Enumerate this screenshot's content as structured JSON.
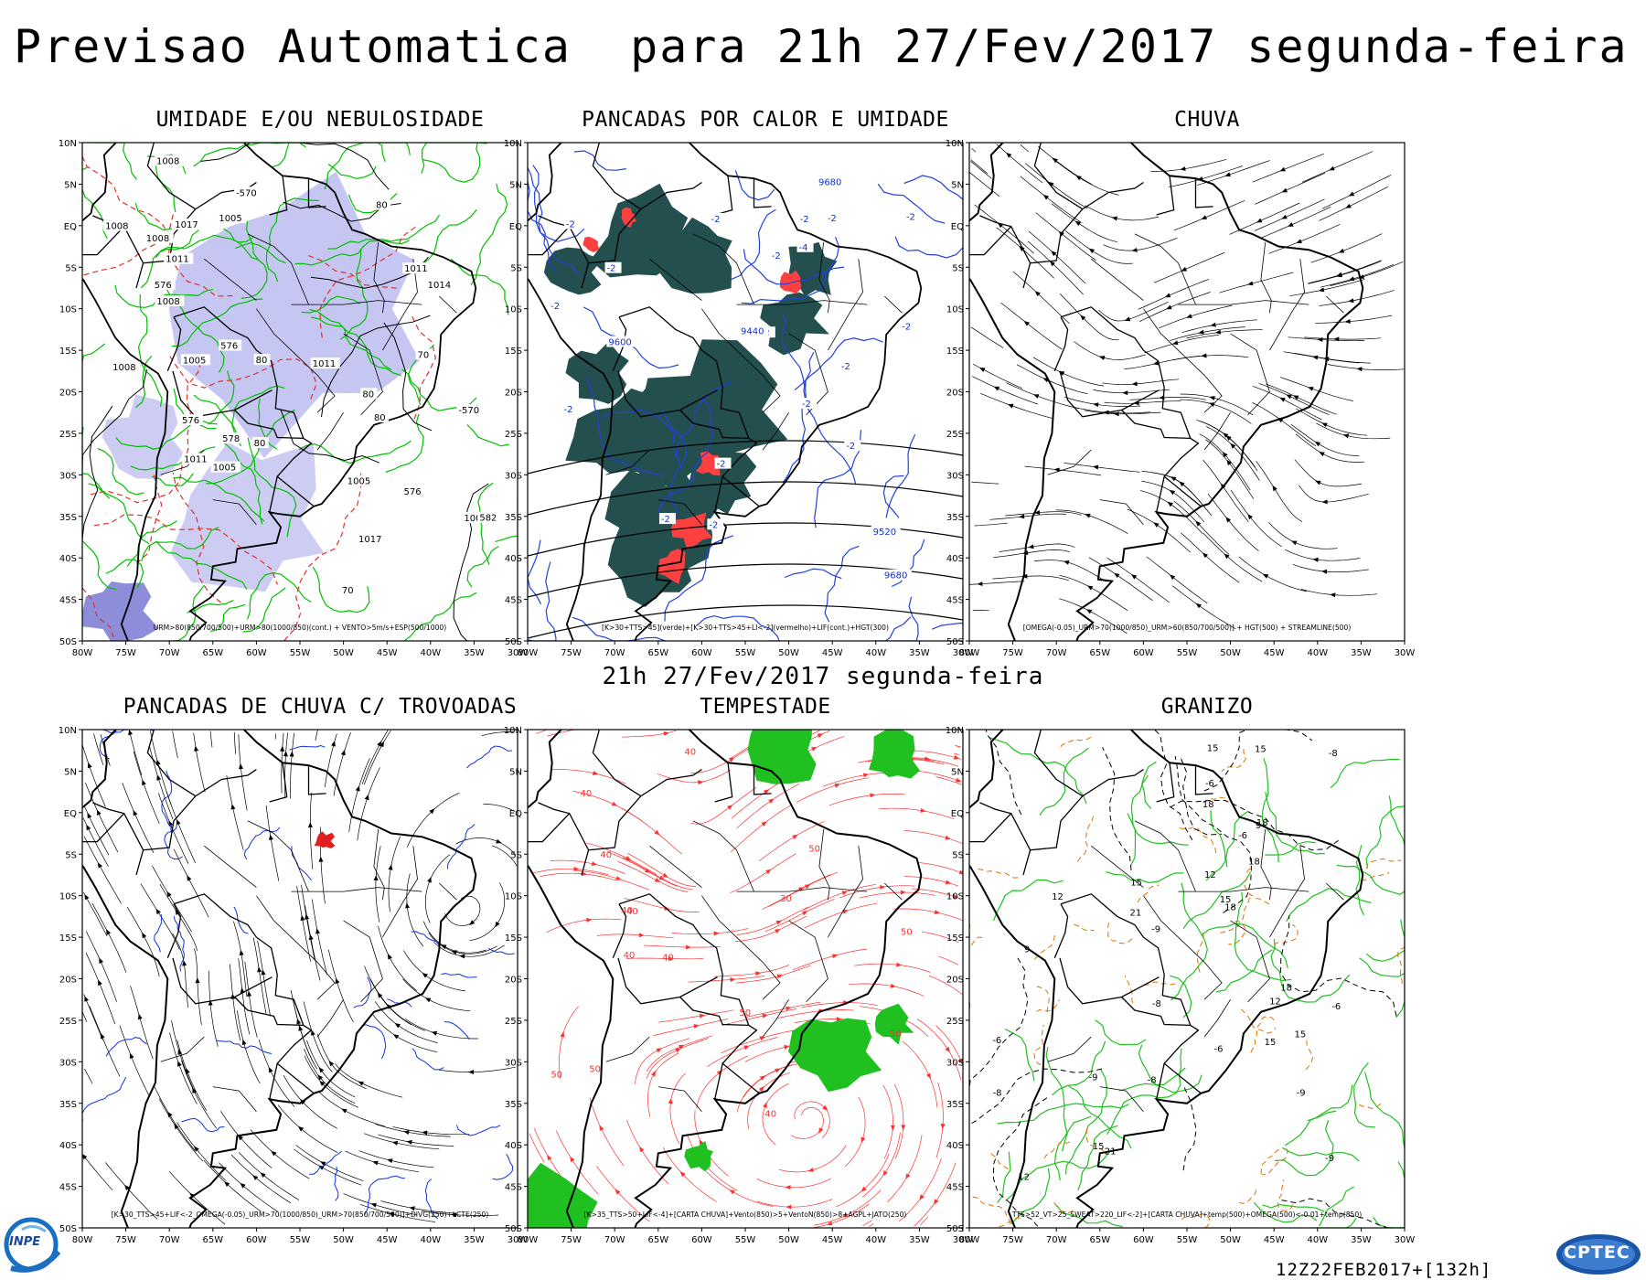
{
  "header": {
    "title": "Previsao Automatica  para 21h 27/Fev/2017 segunda-feira",
    "middle_title": "21h 27/Fev/2017 segunda-feira"
  },
  "axes": {
    "lat_labels": [
      "10N",
      "5N",
      "EQ",
      "5S",
      "10S",
      "15S",
      "20S",
      "25S",
      "30S",
      "35S",
      "40S",
      "45S",
      "50S"
    ],
    "lon_labels": [
      "80W",
      "75W",
      "70W",
      "65W",
      "60W",
      "55W",
      "50W",
      "45W",
      "40W",
      "35W",
      "30W"
    ]
  },
  "panels": [
    {
      "id": "umidade",
      "title": "UMIDADE E/OU NEBULOSIDADE",
      "legend": "URM>80(850/700/500)+URM>80(1000/850)(cont.) + VENTO>5m/s+ESP(500/1000)",
      "labels": [
        "1008",
        "1008",
        "1011",
        "576",
        "576",
        "1005",
        "1008",
        "1005",
        "1008",
        "576",
        "1008",
        "1008",
        "578",
        "1011",
        "582",
        "1014",
        "1005",
        "1017",
        "1017",
        "576",
        "-570",
        "-570",
        "1005",
        "1011",
        "1011",
        "80",
        "80",
        "70",
        "80",
        "70",
        "80",
        "80"
      ],
      "colors": {
        "fill": "#b8b8f0",
        "contour": "#00c000",
        "dashed": "#e03030"
      }
    },
    {
      "id": "pancadas-calor",
      "title": "PANCADAS POR CALOR E UMIDADE",
      "legend": "[K>30+TTS>45](verde)+[K>30+TTS>45+LI<-2](vermelho)+LIF(cont.)+HGT(300)",
      "labels": [
        "-2",
        "-2",
        "-2",
        "-2",
        "-2",
        "-2",
        "-2",
        "-2",
        "-2",
        "-4",
        "-2",
        "-2",
        "-2",
        "-2",
        "-2",
        "-2",
        "-2",
        "-2",
        "9680",
        "9680",
        "9600",
        "9520",
        "9440"
      ],
      "colors": {
        "fill": "#234f4f",
        "red": "#ff4040",
        "contour": "#2040e0"
      }
    },
    {
      "id": "chuva",
      "title": "CHUVA",
      "legend": "[OMEGA(-0.05)_URM>70(1000/850)_URM>60(850/700/500)] + HGT(500) + STREAMLINE(500)",
      "labels": [],
      "colors": {
        "line": "#000000"
      }
    },
    {
      "id": "trovoadas",
      "title": "PANCADAS DE CHUVA C/ TROVOADAS",
      "legend": "[K>30_TTS>45+LIF<-2_OMEGA(-0.05)_URM>70(1000/850)_URM>70(850/700/500)]+DIVG(250)+LCTE(250)",
      "labels": [],
      "colors": {
        "line": "#000000",
        "blue": "#1030e0",
        "red": "#e02020"
      }
    },
    {
      "id": "tempestade",
      "title": "TEMPESTADE",
      "legend": "[K>35_TTS>50+LIF<-4]+[CARTA CHUVA]+Vento(850)>5+VentoN(850)>8+AGPL+JATO(250)",
      "labels": [
        "50",
        "40",
        "50",
        "40",
        "50",
        "40",
        "30",
        "40",
        "50",
        "40",
        "50",
        "40",
        "40",
        "50",
        "40"
      ],
      "colors": {
        "line": "#ff3030",
        "green": "#20c020"
      }
    },
    {
      "id": "granizo",
      "title": "GRANIZO",
      "legend": "TTS>52_VT>25_SWEAT>220_LIF<-2]+[CARTA CHUVA]+temp(500)+OMEGA(500)<-0.01+temp(850)",
      "labels": [
        "-6",
        "-6",
        "-8",
        "-6",
        "-6",
        "-8",
        "-8",
        "-6",
        "-9",
        "-9",
        "-9",
        "-9",
        "-8",
        "15",
        "15",
        "18",
        "21",
        "18",
        "15",
        "12",
        "9",
        "12",
        "18",
        "15",
        "21",
        "15",
        "12",
        "15",
        "15",
        "12",
        "9",
        "18",
        "18"
      ],
      "colors": {
        "green": "#20c020",
        "orange": "#e07000",
        "dashed": "#000000"
      }
    }
  ],
  "footer": {
    "run_code": "12Z22FEB2017+[132h]",
    "logo_left": "INPE",
    "logo_right": "CPTEC"
  }
}
